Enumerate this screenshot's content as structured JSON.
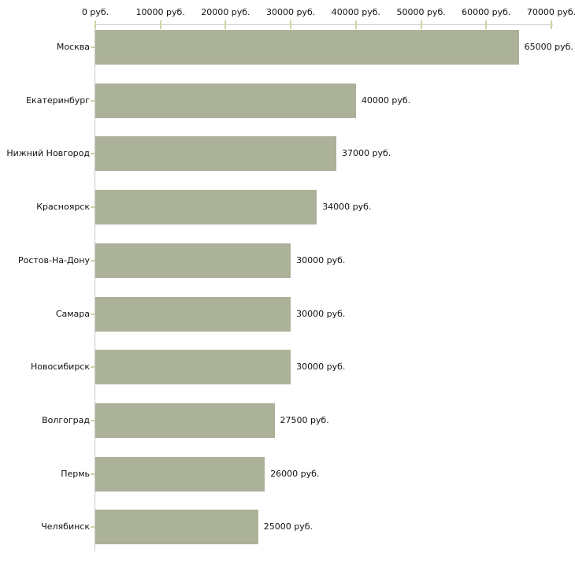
{
  "chart_data": {
    "type": "bar",
    "orientation": "horizontal",
    "title": "",
    "xlabel": "",
    "ylabel": "",
    "unit": "руб.",
    "categories": [
      "Москва",
      "Екатеринбург",
      "Нижний Новгород",
      "Красноярск",
      "Ростов-На-Дону",
      "Самара",
      "Новосибирск",
      "Волгоград",
      "Пермь",
      "Челябинск"
    ],
    "values": [
      65000,
      40000,
      37000,
      34000,
      30000,
      30000,
      30000,
      27500,
      26000,
      25000
    ],
    "value_labels": [
      "65000 руб.",
      "40000 руб.",
      "37000 руб.",
      "34000 руб.",
      "30000 руб.",
      "30000 руб.",
      "30000 руб.",
      "27500 руб.",
      "26000 руб.",
      "25000 руб."
    ],
    "x_axis": {
      "min": 0,
      "max": 70000,
      "tick_step": 10000,
      "tick_values": [
        0,
        10000,
        20000,
        30000,
        40000,
        50000,
        60000,
        70000
      ],
      "tick_labels": [
        "0 руб.",
        "10000 руб.",
        "20000 руб.",
        "30000 руб.",
        "40000 руб.",
        "50000 руб.",
        "60000 руб.",
        "70000 руб."
      ],
      "position": "top"
    },
    "grid": false,
    "legend": false,
    "colors": {
      "bar": "#acb199",
      "axis_line": "#c9c9c9",
      "tick_mark": "#d2d2a4",
      "text": "#111111",
      "background": "#ffffff"
    }
  }
}
